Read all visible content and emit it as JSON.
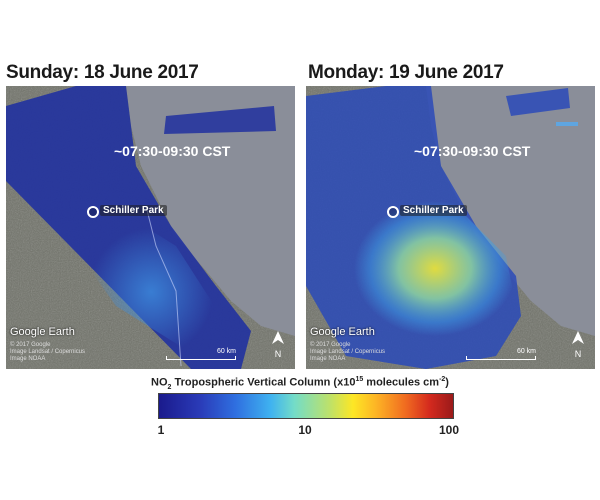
{
  "panels": [
    {
      "title": "Sunday: 18 June 2017",
      "time_window": "~07:30-09:30 CST",
      "location": "Schiller Park",
      "watermark": "Google Earth",
      "credits": [
        "© 2017 Google",
        "Image Landsat / Copernicus",
        "Image NOAA"
      ],
      "scale": "60 km",
      "north": "N",
      "no2_level": "low"
    },
    {
      "title": "Monday: 19 June 2017",
      "time_window": "~07:30-09:30 CST",
      "location": "Schiller Park",
      "watermark": "Google Earth",
      "credits": [
        "© 2017 Google",
        "Image Landsat / Copernicus",
        "Image NOAA"
      ],
      "scale": "60 km",
      "north": "N",
      "no2_level": "elevated"
    }
  ],
  "colorbar": {
    "title_main": "NO",
    "title_sub": "2",
    "title_rest": " Tropospheric Vertical Column (x10",
    "title_sup": "15",
    "title_end": " molecules cm",
    "title_sup2": "-2",
    "title_close": ")",
    "ticks": [
      "1",
      "10",
      "100"
    ],
    "scale": "log",
    "colors": [
      "#1a1a8c",
      "#3fb2f0",
      "#fde725",
      "#d42a1e",
      "#9b1a1a"
    ]
  }
}
